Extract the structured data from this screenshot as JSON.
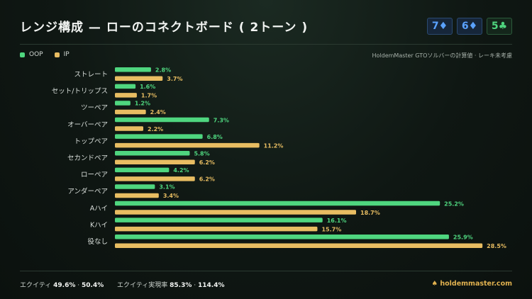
{
  "title": "レンジ構成 — ローのコネクトボード ( 2トーン )",
  "board": [
    {
      "rank": "7",
      "suit": "♦",
      "color": "#5aa2ff"
    },
    {
      "rank": "6",
      "suit": "♦",
      "color": "#5aa2ff"
    },
    {
      "rank": "5",
      "suit": "♣",
      "color": "#4fd67f"
    }
  ],
  "legend_note": "HoldemMaster GTOソルバーの計算値 · レーキ未考慮",
  "chart_data": {
    "type": "bar",
    "orientation": "horizontal",
    "categories": [
      "ストレート",
      "セット/トリップス",
      "ツーペア",
      "オーバーペア",
      "トップペア",
      "セカンドペア",
      "ローペア",
      "アンダーペア",
      "Aハイ",
      "Kハイ",
      "役なし"
    ],
    "series": [
      {
        "name": "OOP",
        "color": "#4fd67f",
        "values": [
          2.8,
          1.6,
          1.2,
          7.3,
          6.8,
          5.8,
          4.2,
          3.1,
          25.2,
          16.1,
          25.9
        ],
        "labels": [
          "2.8%",
          "1.6%",
          "1.2%",
          "7.3%",
          "6.8%",
          "5.8%",
          "4.2%",
          "3.1%",
          "25.2%",
          "16.1%",
          "25.9%"
        ]
      },
      {
        "name": "IP",
        "color": "#e8bd62",
        "values": [
          3.7,
          1.7,
          2.4,
          2.2,
          11.2,
          6.2,
          6.2,
          3.4,
          18.7,
          15.7,
          28.5
        ],
        "labels": [
          "3.7%",
          "1.7%",
          "2.4%",
          "2.2%",
          "11.2%",
          "6.2%",
          "6.2%",
          "3.4%",
          "18.7%",
          "15.7%",
          "28.5%"
        ]
      }
    ],
    "xlim": [
      0,
      30
    ],
    "grid": false,
    "legend_position": "top-left"
  },
  "footer": {
    "equity_label": "エクイティ",
    "equity_oop": "49.6%",
    "sep": "·",
    "equity_ip": "50.4%",
    "realization_label": "エクイティ実現率",
    "realization_oop": "85.3%",
    "realization_ip": "114.4%",
    "brand": "♠ holdemmaster.com"
  }
}
